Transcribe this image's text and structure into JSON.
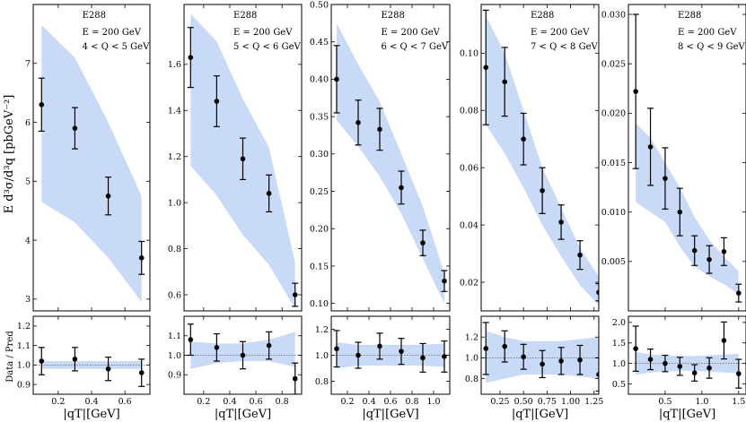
{
  "figure": {
    "ylabel_main": "E d³σ/d³q [pbGeV⁻²]",
    "ylabel_ratio": "Data / Pred",
    "xlabel": "|qT|[GeV]"
  },
  "colors": {
    "band": "#c9daf7",
    "marker": "#000000",
    "refline": "#666666"
  },
  "chart_data": [
    {
      "type": "scatter",
      "experiment": "E288",
      "energy": "E = 200 GeV",
      "qrange": "4 < Q < 5 GeV",
      "xlim": [
        0.05,
        0.75
      ],
      "xticks": [
        0.2,
        0.4,
        0.6
      ],
      "ylim": [
        2.8,
        8.0
      ],
      "yticks": [
        3,
        4,
        5,
        6,
        7
      ],
      "x": [
        0.1,
        0.3,
        0.5,
        0.7
      ],
      "y": [
        6.3,
        5.9,
        4.75,
        3.7
      ],
      "yerr": [
        0.45,
        0.35,
        0.32,
        0.28
      ],
      "band_x": [
        0.1,
        0.3,
        0.5,
        0.7
      ],
      "band_lo": [
        4.65,
        4.3,
        3.7,
        2.95
      ],
      "band_hi": [
        7.65,
        7.1,
        6.0,
        4.75
      ],
      "ratio": {
        "ylim": [
          0.85,
          1.25
        ],
        "yticks": [
          0.9,
          1.0,
          1.1,
          1.2
        ],
        "y": [
          1.02,
          1.03,
          0.98,
          0.96
        ],
        "yerr": [
          0.07,
          0.06,
          0.06,
          0.07
        ],
        "band_lo": [
          0.98,
          0.98,
          0.98,
          0.98
        ],
        "band_hi": [
          1.02,
          1.02,
          1.02,
          1.02
        ]
      }
    },
    {
      "type": "scatter",
      "experiment": "E288",
      "energy": "E = 200 GeV",
      "qrange": "5 < Q < 6 GeV",
      "xlim": [
        0.05,
        0.95
      ],
      "xticks": [
        0.2,
        0.4,
        0.6,
        0.8
      ],
      "ylim": [
        0.53,
        1.86
      ],
      "yticks": [
        0.6,
        0.8,
        1.0,
        1.2,
        1.4,
        1.6
      ],
      "x": [
        0.1,
        0.3,
        0.5,
        0.7,
        0.9
      ],
      "y": [
        1.63,
        1.44,
        1.19,
        1.04,
        0.6
      ],
      "yerr": [
        0.13,
        0.11,
        0.09,
        0.08,
        0.05
      ],
      "band_x": [
        0.1,
        0.3,
        0.5,
        0.7,
        0.9
      ],
      "band_lo": [
        1.16,
        1.03,
        0.86,
        0.73,
        0.54
      ],
      "band_hi": [
        1.82,
        1.7,
        1.45,
        1.24,
        0.74
      ],
      "ratio": {
        "ylim": [
          0.8,
          1.2
        ],
        "yticks": [
          0.9,
          1.0,
          1.1
        ],
        "y": [
          1.08,
          1.04,
          1.0,
          1.05,
          0.88
        ],
        "yerr": [
          0.08,
          0.07,
          0.07,
          0.07,
          0.08
        ],
        "band_lo": [
          0.93,
          0.96,
          0.97,
          0.97,
          0.94
        ],
        "band_hi": [
          1.07,
          1.06,
          1.06,
          1.08,
          1.12
        ]
      }
    },
    {
      "type": "scatter",
      "experiment": "E288",
      "energy": "E = 200 GeV",
      "qrange": "6 < Q < 7 GeV",
      "xlim": [
        0.05,
        1.15
      ],
      "xticks": [
        0.2,
        0.4,
        0.6,
        0.8,
        1.0
      ],
      "ylim": [
        0.09,
        0.5
      ],
      "yticks": [
        0.1,
        0.15,
        0.2,
        0.25,
        0.3,
        0.35,
        0.4,
        0.45,
        0.5
      ],
      "x": [
        0.1,
        0.3,
        0.5,
        0.7,
        0.9,
        1.1
      ],
      "y": [
        0.4,
        0.342,
        0.333,
        0.255,
        0.181,
        0.13
      ],
      "yerr": [
        0.045,
        0.03,
        0.028,
        0.022,
        0.017,
        0.014
      ],
      "band_x": [
        0.1,
        0.3,
        0.5,
        0.7,
        0.9,
        1.1
      ],
      "band_lo": [
        0.345,
        0.31,
        0.27,
        0.22,
        0.16,
        0.1
      ],
      "band_hi": [
        0.475,
        0.42,
        0.37,
        0.3,
        0.23,
        0.14
      ],
      "ratio": {
        "ylim": [
          0.7,
          1.3
        ],
        "yticks": [
          0.8,
          1.0,
          1.2
        ],
        "y": [
          1.05,
          1.0,
          1.07,
          1.03,
          0.98,
          0.99
        ],
        "yerr": [
          0.14,
          0.1,
          0.1,
          0.1,
          0.11,
          0.12
        ],
        "band_lo": [
          0.9,
          0.92,
          0.92,
          0.92,
          0.92,
          0.91
        ],
        "band_hi": [
          1.1,
          1.08,
          1.08,
          1.08,
          1.08,
          1.09
        ]
      }
    },
    {
      "type": "scatter",
      "experiment": "E288",
      "energy": "E = 200 GeV",
      "qrange": "7 < Q < 8 GeV",
      "xlim": [
        0.05,
        1.3
      ],
      "xticks": [
        0.25,
        0.5,
        0.75,
        1.0,
        1.25
      ],
      "ylim": [
        0.01,
        0.117
      ],
      "yticks": [
        0.02,
        0.04,
        0.06,
        0.08,
        0.1
      ],
      "x": [
        0.1,
        0.3,
        0.5,
        0.7,
        0.9,
        1.1,
        1.3
      ],
      "y": [
        0.095,
        0.09,
        0.07,
        0.052,
        0.041,
        0.0295,
        0.0165
      ],
      "yerr": [
        0.02,
        0.012,
        0.009,
        0.008,
        0.006,
        0.005,
        0.003
      ],
      "band_x": [
        0.1,
        0.3,
        0.5,
        0.7,
        0.9,
        1.1,
        1.3
      ],
      "band_lo": [
        0.075,
        0.065,
        0.053,
        0.04,
        0.029,
        0.019,
        0.012
      ],
      "band_hi": [
        0.113,
        0.1,
        0.08,
        0.06,
        0.046,
        0.032,
        0.022
      ],
      "ratio": {
        "ylim": [
          0.65,
          1.4
        ],
        "yticks": [
          0.8,
          1.0,
          1.2
        ],
        "y": [
          1.09,
          1.11,
          1.01,
          0.94,
          0.97,
          0.98,
          0.84
        ],
        "yerr": [
          0.25,
          0.15,
          0.12,
          0.13,
          0.13,
          0.14,
          0.16
        ],
        "band_lo": [
          0.76,
          0.8,
          0.84,
          0.84,
          0.84,
          0.82,
          0.8
        ],
        "band_hi": [
          1.26,
          1.2,
          1.16,
          1.16,
          1.16,
          1.18,
          1.2
        ]
      }
    },
    {
      "type": "scatter",
      "experiment": "E288",
      "energy": "E = 200 GeV",
      "qrange": "8 < Q < 9 GeV",
      "xlim": [
        0.0,
        1.6
      ],
      "xticks": [
        0.5,
        1.0,
        1.5
      ],
      "ylim": [
        0.0,
        0.031
      ],
      "yticks": [
        0.005,
        0.01,
        0.015,
        0.02,
        0.025,
        0.03
      ],
      "x": [
        0.1,
        0.3,
        0.5,
        0.7,
        0.9,
        1.1,
        1.3,
        1.5
      ],
      "y": [
        0.0222,
        0.0166,
        0.0134,
        0.01,
        0.0061,
        0.0052,
        0.006,
        0.0018
      ],
      "yerr": [
        0.0078,
        0.0039,
        0.0031,
        0.0024,
        0.0015,
        0.0014,
        0.0014,
        0.0009
      ],
      "band_x": [
        0.1,
        0.3,
        0.5,
        0.7,
        0.9,
        1.1,
        1.3,
        1.5
      ],
      "band_lo": [
        0.011,
        0.01,
        0.009,
        0.0065,
        0.0045,
        0.0035,
        0.0027,
        0.0017
      ],
      "band_hi": [
        0.019,
        0.0175,
        0.015,
        0.0125,
        0.0095,
        0.0072,
        0.0055,
        0.004
      ],
      "ratio": {
        "ylim": [
          0.25,
          2.15
        ],
        "yticks": [
          0.5,
          1.0,
          1.5,
          2.0
        ],
        "y": [
          1.36,
          1.1,
          1.0,
          0.93,
          0.77,
          0.89,
          1.56,
          0.75
        ],
        "yerr": [
          0.55,
          0.25,
          0.2,
          0.22,
          0.2,
          0.25,
          0.45,
          0.35
        ],
        "band_lo": [
          0.72,
          0.78,
          0.8,
          0.82,
          0.82,
          0.8,
          0.78,
          0.76
        ],
        "band_hi": [
          1.28,
          1.22,
          1.2,
          1.18,
          1.18,
          1.2,
          1.22,
          1.24
        ]
      }
    }
  ]
}
